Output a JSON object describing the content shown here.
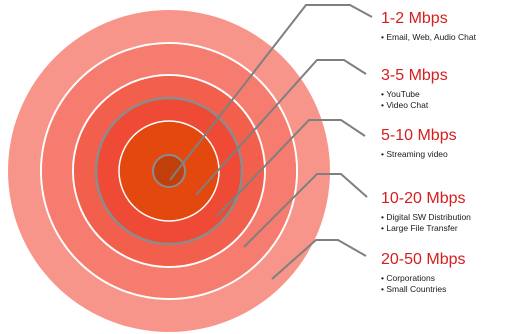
{
  "colors": {
    "ring_outer": "#f8958a",
    "ring_2": "#f67c6f",
    "ring_3": "#f35f4d",
    "ring_4": "#ef4a35",
    "core": "#e3490e",
    "center_dot": "#c13f0b",
    "separator": "#ffffff",
    "ring_border": "#8c8c8c",
    "leader_line": "#7f7f7f",
    "speed_text": "#d51e1e"
  },
  "tiers": [
    {
      "speed": "1-2 Mbps",
      "items": [
        "Email, Web, Audio Chat"
      ]
    },
    {
      "speed": "3-5 Mbps",
      "items": [
        "YouTube",
        "Video Chat"
      ]
    },
    {
      "speed": "5-10 Mbps",
      "items": [
        "Streaming video"
      ]
    },
    {
      "speed": "10-20 Mbps",
      "items": [
        "Digital SW Distribution",
        "Large File Transfer"
      ]
    },
    {
      "speed": "20-50 Mbps",
      "items": [
        "Corporations",
        "Small Countries"
      ]
    }
  ]
}
